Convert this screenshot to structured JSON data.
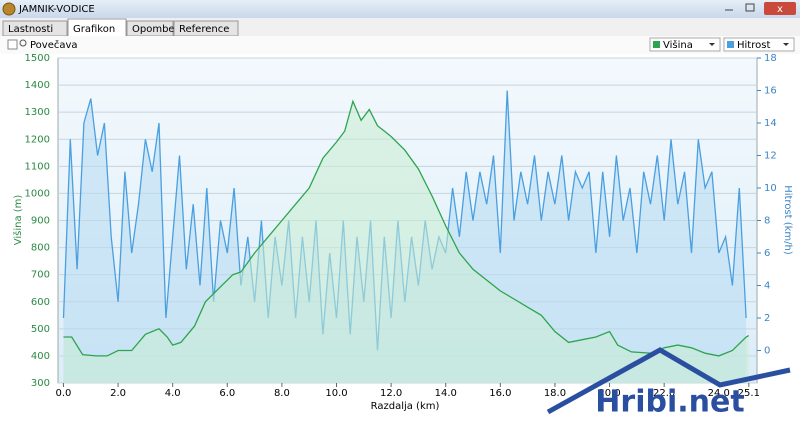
{
  "window": {
    "title": "JAMNIK-VODICE",
    "tabs": [
      "Lastnosti",
      "Grafikon",
      "Opombe",
      "Reference"
    ],
    "zoom_label": "Povečava",
    "watermark": "Hribi.net"
  },
  "chart_data": {
    "type": "line",
    "x_label": "Razdalja (km)",
    "y_label": "Višina (m)",
    "y2_label": "Hitrost (km/h)",
    "xlim": [
      -0.2,
      25.4
    ],
    "xticks": [
      {
        "value": 0,
        "label": "0.0"
      },
      {
        "value": 2,
        "label": "2.0"
      },
      {
        "value": 4,
        "label": "4.0"
      },
      {
        "value": 6,
        "label": "6.0"
      },
      {
        "value": 8,
        "label": "8.0"
      },
      {
        "value": 10,
        "label": "10.0"
      },
      {
        "value": 12,
        "label": "12.0"
      },
      {
        "value": 14,
        "label": "14.0"
      },
      {
        "value": 16,
        "label": "16.0"
      },
      {
        "value": 18,
        "label": "18.0"
      },
      {
        "value": 20,
        "label": "20.0"
      },
      {
        "value": 22,
        "label": "22.0"
      },
      {
        "value": 24,
        "label": "24.0"
      },
      25.1
    ],
    "ylim": [
      300,
      1500
    ],
    "yticks": [
      300,
      400,
      500,
      600,
      700,
      800,
      900,
      1000,
      1100,
      1200,
      1300,
      1400,
      1500
    ],
    "y2lim": [
      -2,
      18
    ],
    "y2ticks": [
      0,
      2,
      4,
      6,
      8,
      10,
      12,
      14,
      16,
      18
    ],
    "grid": true,
    "series": [
      {
        "name": "Višina",
        "color": "#2ea44f",
        "fill": "#c9ecd2",
        "x": [
          0,
          0.3,
          0.7,
          1.2,
          1.6,
          2.0,
          2.5,
          3.0,
          3.5,
          3.8,
          4.0,
          4.3,
          4.8,
          5.2,
          5.7,
          6.2,
          6.5,
          7.0,
          7.5,
          8.0,
          8.5,
          9.0,
          9.5,
          10.0,
          10.3,
          10.6,
          10.9,
          11.2,
          11.5,
          12.0,
          12.5,
          13.0,
          13.5,
          14.0,
          14.5,
          15.0,
          15.5,
          16.0,
          16.5,
          17.0,
          17.5,
          18.0,
          18.5,
          19.0,
          19.5,
          20.0,
          20.3,
          20.8,
          21.5,
          22.0,
          22.5,
          23.0,
          23.5,
          24.0,
          24.5,
          25.0,
          25.1
        ],
        "values": [
          470,
          470,
          405,
          400,
          400,
          420,
          420,
          480,
          500,
          470,
          440,
          450,
          510,
          600,
          650,
          700,
          710,
          780,
          840,
          900,
          960,
          1020,
          1130,
          1190,
          1230,
          1340,
          1270,
          1310,
          1250,
          1210,
          1160,
          1090,
          990,
          880,
          780,
          720,
          680,
          640,
          610,
          580,
          550,
          490,
          450,
          460,
          470,
          490,
          440,
          415,
          410,
          430,
          440,
          430,
          410,
          400,
          420,
          470,
          475
        ]
      },
      {
        "name": "Hitrost",
        "color": "#4a9fe0",
        "fill": "#b7daf3",
        "axis": "y2",
        "x": [
          0,
          0.25,
          0.5,
          0.75,
          1,
          1.25,
          1.5,
          1.75,
          2,
          2.25,
          2.5,
          2.75,
          3,
          3.25,
          3.5,
          3.75,
          4,
          4.25,
          4.5,
          4.75,
          5,
          5.25,
          5.5,
          5.75,
          6,
          6.25,
          6.5,
          6.75,
          7,
          7.25,
          7.5,
          7.75,
          8,
          8.25,
          8.5,
          8.75,
          9,
          9.25,
          9.5,
          9.75,
          10,
          10.25,
          10.5,
          10.75,
          11,
          11.25,
          11.5,
          11.75,
          12,
          12.25,
          12.5,
          12.75,
          13,
          13.25,
          13.5,
          13.75,
          14,
          14.25,
          14.5,
          14.75,
          15,
          15.25,
          15.5,
          15.75,
          16,
          16.25,
          16.5,
          16.75,
          17,
          17.25,
          17.5,
          17.75,
          18,
          18.25,
          18.5,
          18.75,
          19,
          19.25,
          19.5,
          19.75,
          20,
          20.25,
          20.5,
          20.75,
          21,
          21.25,
          21.5,
          21.75,
          22,
          22.25,
          22.5,
          22.75,
          23,
          23.25,
          23.5,
          23.75,
          24,
          24.25,
          24.5,
          24.75,
          25
        ],
        "values": [
          2,
          13,
          5,
          14,
          15.5,
          12,
          14,
          7,
          3,
          11,
          6,
          9,
          13,
          11,
          14,
          2,
          7,
          12,
          5,
          9,
          4,
          10,
          3,
          8,
          6,
          10,
          4,
          7,
          3,
          8,
          2,
          7,
          4,
          8,
          2,
          7,
          3,
          8,
          1,
          6,
          2,
          8,
          1,
          7,
          3,
          8,
          0,
          7,
          2,
          8,
          3,
          7,
          4,
          8,
          5,
          7,
          6,
          10,
          7,
          11,
          8,
          11,
          9,
          12,
          6,
          16,
          8,
          11,
          9,
          12,
          8,
          11,
          9,
          12,
          8,
          11,
          10,
          11,
          6,
          11,
          7,
          12,
          8,
          10,
          6,
          11,
          9,
          12,
          8,
          13,
          9,
          11,
          6,
          13,
          10,
          11,
          6,
          7,
          4,
          10,
          2
        ]
      }
    ]
  }
}
